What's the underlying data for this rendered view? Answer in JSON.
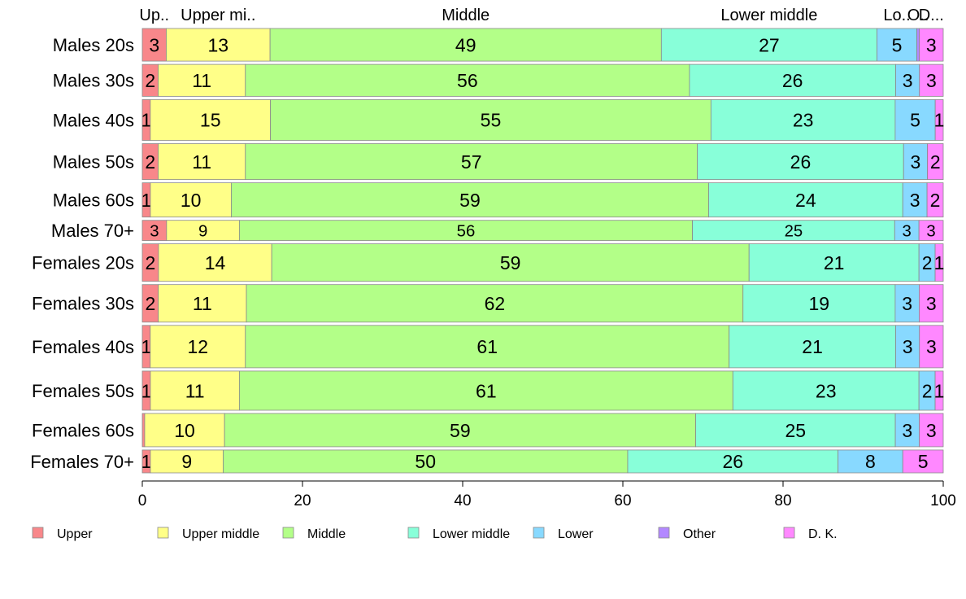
{
  "chart_data": {
    "type": "bar",
    "orientation": "horizontal",
    "stacked": true,
    "title": "",
    "xlabel": "",
    "ylabel": "",
    "xlim": [
      0,
      100
    ],
    "x_ticks": [
      0,
      20,
      40,
      60,
      80,
      100
    ],
    "grid": false,
    "legend_position": "bottom",
    "top_labels": [
      "Up..",
      "Upper mi..",
      "Middle",
      "Lower middle",
      "Lo..",
      "O..",
      "D..."
    ],
    "categories": [
      "Males 20s",
      "Males 30s",
      "Males 40s",
      "Males 50s",
      "Males 60s",
      "Males 70+",
      "Females 20s",
      "Females 30s",
      "Females 40s",
      "Females 50s",
      "Females 60s",
      "Females 70+"
    ],
    "row_weights": [
      1.0,
      0.98,
      1.25,
      1.1,
      1.05,
      0.62,
      1.15,
      1.15,
      1.3,
      1.2,
      1.02,
      0.7
    ],
    "series": [
      {
        "name": "Upper",
        "color": "#f8878a",
        "values": [
          3,
          2,
          1,
          2,
          1,
          3,
          2,
          2,
          1,
          1,
          0.3,
          1
        ],
        "labels": [
          "3",
          "2",
          "1",
          "2",
          "1",
          "3",
          "2",
          "2",
          "1",
          "1",
          "",
          "1"
        ]
      },
      {
        "name": "Upper middle",
        "color": "#ffff88",
        "values": [
          13,
          11,
          15,
          11,
          10,
          9,
          14,
          11,
          12,
          11,
          10,
          9
        ],
        "labels": [
          "13",
          "11",
          "15",
          "11",
          "10",
          "9",
          "14",
          "11",
          "12",
          "11",
          "10",
          "9"
        ]
      },
      {
        "name": "Middle",
        "color": "#b3ff88",
        "values": [
          49,
          56,
          55,
          57,
          59,
          56,
          59,
          62,
          61,
          61,
          59,
          50
        ],
        "labels": [
          "49",
          "56",
          "55",
          "57",
          "59",
          "56",
          "59",
          "62",
          "61",
          "61",
          "59",
          "50"
        ]
      },
      {
        "name": "Lower middle",
        "color": "#88ffd9",
        "values": [
          27,
          26,
          23,
          26,
          24,
          25,
          21,
          19,
          21,
          23,
          25,
          26
        ],
        "labels": [
          "27",
          "26",
          "23",
          "26",
          "24",
          "25",
          "21",
          "19",
          "21",
          "23",
          "25",
          "26"
        ]
      },
      {
        "name": "Lower",
        "color": "#88d9ff",
        "values": [
          5,
          3,
          5,
          3,
          3,
          3,
          2,
          3,
          3,
          2,
          3,
          8
        ],
        "labels": [
          "5",
          "3",
          "5",
          "3",
          "3",
          "3",
          "2",
          "3",
          "3",
          "2",
          "3",
          "8"
        ]
      },
      {
        "name": "Other",
        "color": "#b388ff",
        "values": [
          0.3,
          0,
          0,
          0,
          0,
          0,
          0,
          0,
          0,
          0,
          0,
          0
        ],
        "labels": [
          "",
          "",
          "",
          "",
          "",
          "",
          "",
          "",
          "",
          "",
          "",
          ""
        ]
      },
      {
        "name": "D. K.",
        "color": "#ff88ff",
        "values": [
          3,
          3,
          1,
          2,
          2,
          3,
          1,
          3,
          3,
          1,
          3,
          5
        ],
        "labels": [
          "3",
          "3",
          "1",
          "2",
          "2",
          "3",
          "1",
          "3",
          "3",
          "1",
          "3",
          "5"
        ]
      }
    ]
  }
}
